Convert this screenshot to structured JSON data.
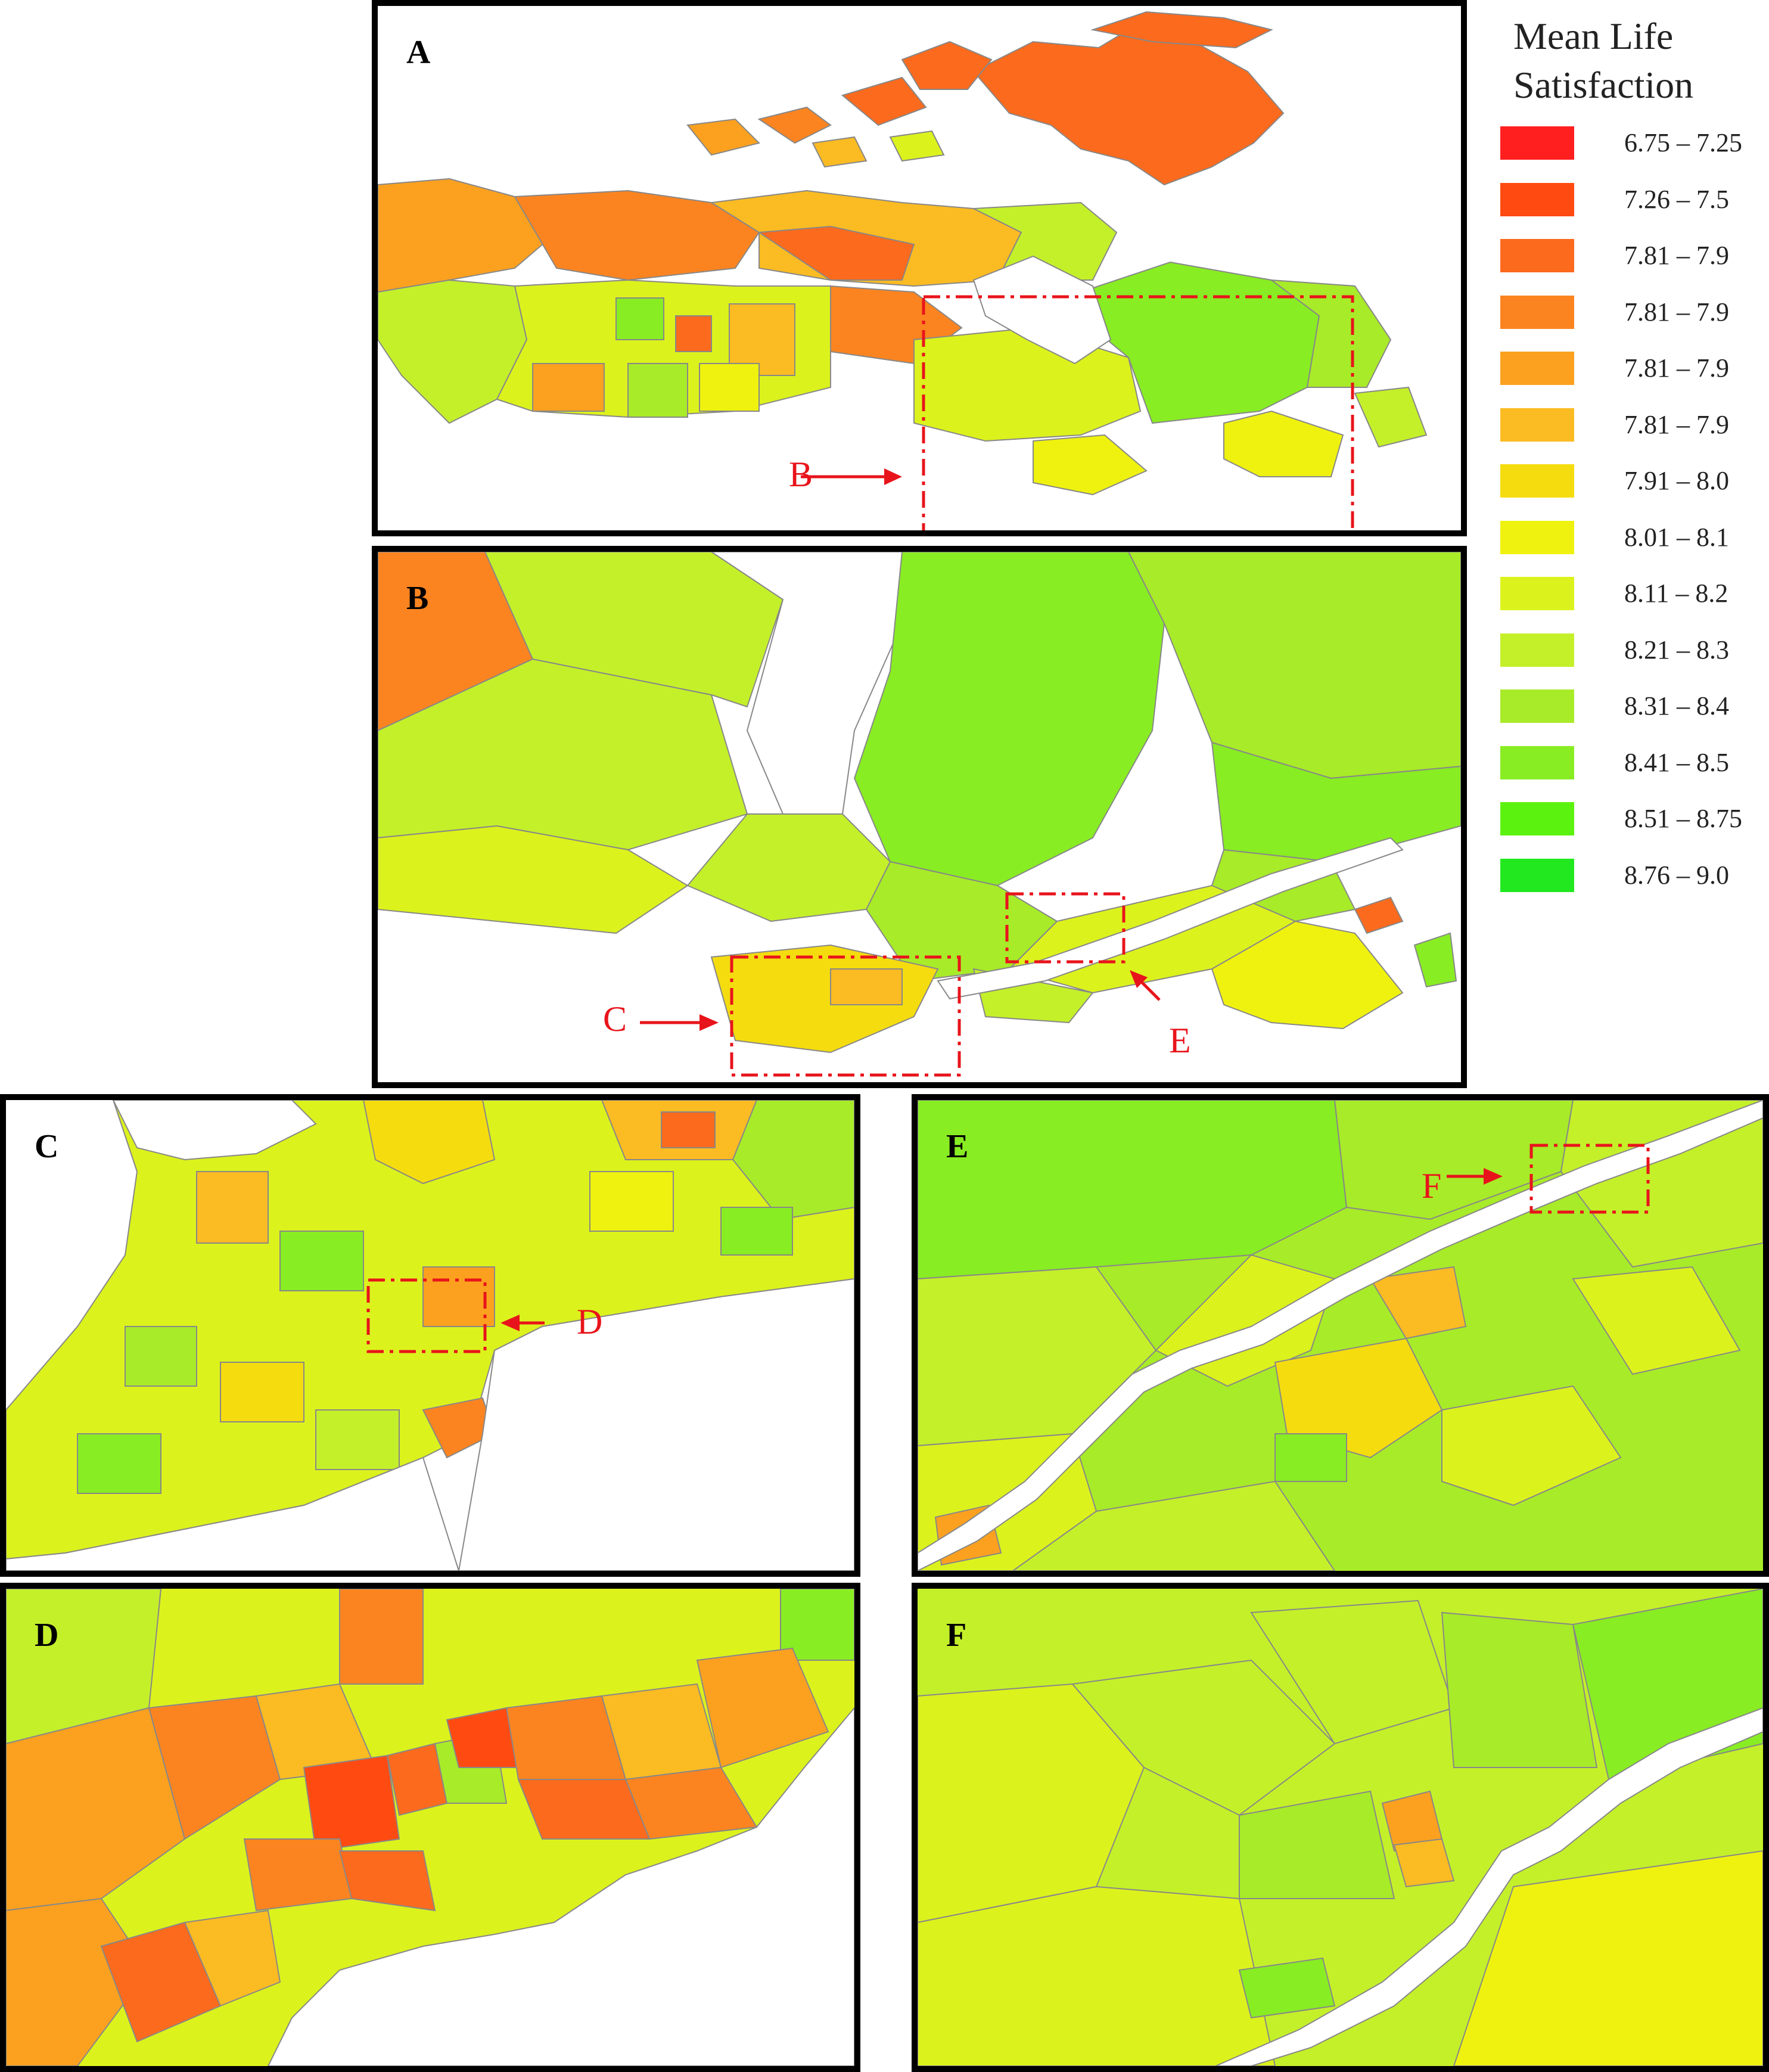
{
  "legend": {
    "title_line1": "Mean Life",
    "title_line2": "Satisfaction",
    "items": [
      {
        "label": "6.75 – 7.25",
        "color": "#ff1f1f"
      },
      {
        "label": "7.26 – 7.5",
        "color": "#ff4b12"
      },
      {
        "label": "7.81 – 7.9",
        "color": "#fb6a1d"
      },
      {
        "label": "7.81 – 7.9",
        "color": "#fb8420"
      },
      {
        "label": "7.81 – 7.9",
        "color": "#fba11f"
      },
      {
        "label": "7.81 – 7.9",
        "color": "#fbbb22"
      },
      {
        "label": "7.91 – 8.0",
        "color": "#f5dc0f"
      },
      {
        "label": "8.01 – 8.1",
        "color": "#eff20f"
      },
      {
        "label": "8.11 – 8.2",
        "color": "#dcf21d"
      },
      {
        "label": "8.21 – 8.3",
        "color": "#c4f02a"
      },
      {
        "label": "8.31 – 8.4",
        "color": "#a8eb28"
      },
      {
        "label": "8.41 – 8.5",
        "color": "#88ed22"
      },
      {
        "label": "8.51 – 8.75",
        "color": "#5cf210"
      },
      {
        "label": "8.76 – 9.0",
        "color": "#22e81f"
      }
    ]
  },
  "panels": {
    "A": {
      "letter": "A"
    },
    "B": {
      "letter": "B"
    },
    "C": {
      "letter": "C"
    },
    "D": {
      "letter": "D"
    },
    "E": {
      "letter": "E"
    },
    "F": {
      "letter": "F"
    }
  },
  "callouts": {
    "B": "B",
    "C": "C",
    "D": "D",
    "E": "E",
    "F": "F"
  }
}
